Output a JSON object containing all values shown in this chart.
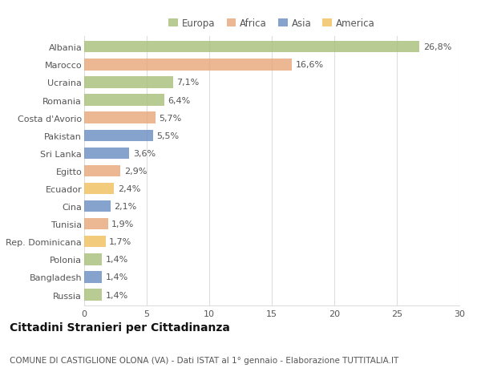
{
  "categories": [
    "Albania",
    "Marocco",
    "Ucraina",
    "Romania",
    "Costa d'Avorio",
    "Pakistan",
    "Sri Lanka",
    "Egitto",
    "Ecuador",
    "Cina",
    "Tunisia",
    "Rep. Dominicana",
    "Polonia",
    "Bangladesh",
    "Russia"
  ],
  "values": [
    26.8,
    16.6,
    7.1,
    6.4,
    5.7,
    5.5,
    3.6,
    2.9,
    2.4,
    2.1,
    1.9,
    1.7,
    1.4,
    1.4,
    1.4
  ],
  "labels": [
    "26,8%",
    "16,6%",
    "7,1%",
    "6,4%",
    "5,7%",
    "5,5%",
    "3,6%",
    "2,9%",
    "2,4%",
    "2,1%",
    "1,9%",
    "1,7%",
    "1,4%",
    "1,4%",
    "1,4%"
  ],
  "continents": [
    "Europa",
    "Africa",
    "Europa",
    "Europa",
    "Africa",
    "Asia",
    "Asia",
    "Africa",
    "America",
    "Asia",
    "Africa",
    "America",
    "Europa",
    "Asia",
    "Europa"
  ],
  "continent_colors": {
    "Europa": "#a8c07a",
    "Africa": "#e8a87c",
    "Asia": "#6b8fc4",
    "America": "#f0c060"
  },
  "legend_order": [
    "Europa",
    "Africa",
    "Asia",
    "America"
  ],
  "title": "Cittadini Stranieri per Cittadinanza",
  "subtitle": "COMUNE DI CASTIGLIONE OLONA (VA) - Dati ISTAT al 1° gennaio - Elaborazione TUTTITALIA.IT",
  "xlim": [
    0,
    30
  ],
  "xticks": [
    0,
    5,
    10,
    15,
    20,
    25,
    30
  ],
  "background_color": "#ffffff",
  "bar_height": 0.65,
  "title_fontsize": 10,
  "subtitle_fontsize": 7.5,
  "tick_fontsize": 8,
  "label_fontsize": 8,
  "legend_fontsize": 8.5
}
